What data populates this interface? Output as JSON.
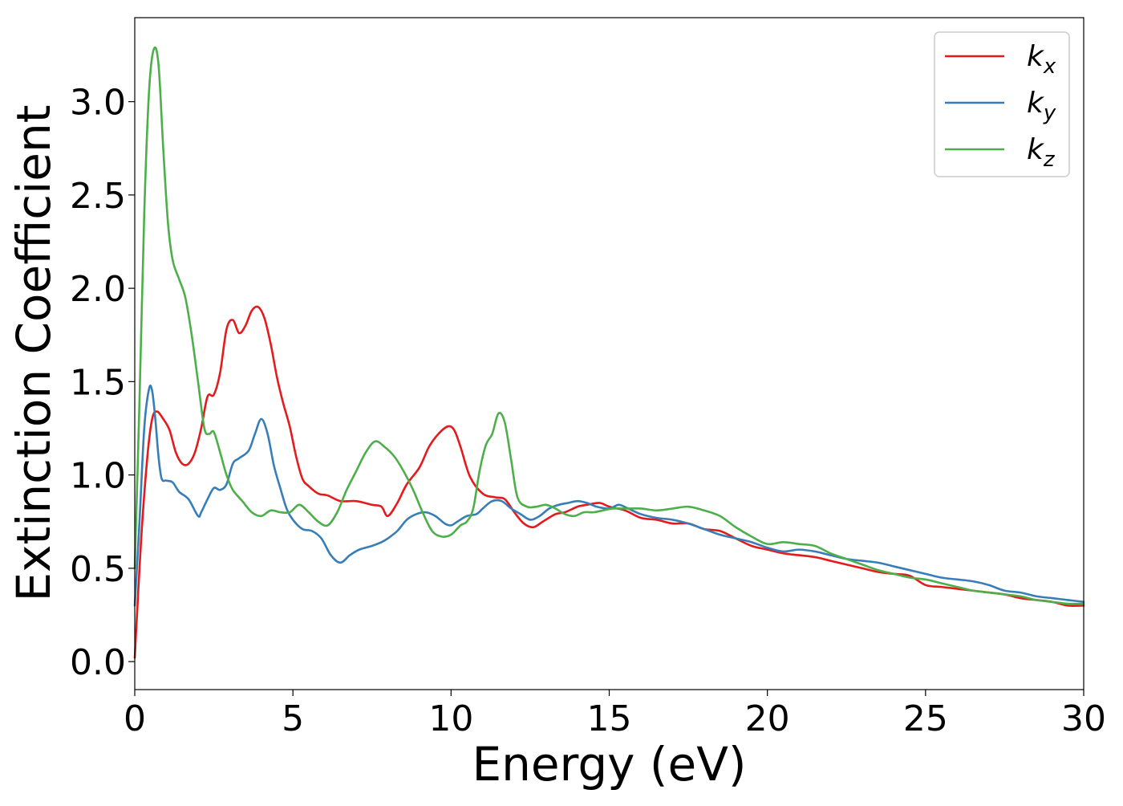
{
  "colors": {
    "kx": "#e41a1c",
    "ky": "#377eb8",
    "kz": "#4daf4a",
    "axis": "#000000",
    "background": "#ffffff"
  },
  "chart_data": {
    "type": "line",
    "title": "",
    "xlabel": "Energy (eV)",
    "ylabel": "Extinction Coefficient",
    "xlim": [
      0,
      30
    ],
    "ylim": [
      -0.15,
      3.45
    ],
    "xticks": [
      0,
      5,
      10,
      15,
      20,
      25,
      30
    ],
    "xtick_labels": [
      "0",
      "5",
      "10",
      "15",
      "20",
      "25",
      "30"
    ],
    "yticks": [
      0.0,
      0.5,
      1.0,
      1.5,
      2.0,
      2.5,
      3.0
    ],
    "ytick_labels": [
      "0.0",
      "0.5",
      "1.0",
      "1.5",
      "2.0",
      "2.5",
      "3.0"
    ],
    "grid": false,
    "legend_position": "top-right",
    "series": [
      {
        "key": "kx",
        "name": "k",
        "subscript": "x",
        "x": [
          0,
          0.2,
          0.4,
          0.55,
          0.7,
          0.9,
          1.1,
          1.3,
          1.5,
          1.7,
          1.9,
          2.1,
          2.3,
          2.5,
          2.7,
          2.9,
          3.1,
          3.3,
          3.5,
          3.7,
          3.9,
          4.1,
          4.3,
          4.5,
          4.7,
          4.9,
          5.1,
          5.3,
          5.5,
          5.8,
          6.1,
          6.5,
          7.0,
          7.5,
          7.8,
          8.0,
          8.3,
          8.6,
          9.0,
          9.3,
          9.6,
          9.9,
          10.1,
          10.3,
          10.6,
          11.0,
          11.4,
          11.7,
          12.0,
          12.3,
          12.6,
          12.9,
          13.3,
          13.6,
          14.0,
          14.3,
          14.7,
          15.0,
          15.5,
          16.0,
          16.5,
          17.0,
          17.5,
          18.0,
          18.5,
          19.0,
          19.5,
          20.0,
          20.5,
          21.0,
          21.5,
          22.0,
          22.5,
          23.0,
          23.5,
          24.0,
          24.5,
          25.0,
          25.5,
          26.0,
          26.5,
          27.0,
          27.5,
          28.0,
          28.5,
          29.0,
          29.5,
          30.0
        ],
        "y": [
          0.02,
          0.65,
          1.1,
          1.3,
          1.34,
          1.3,
          1.24,
          1.12,
          1.06,
          1.06,
          1.12,
          1.25,
          1.42,
          1.43,
          1.55,
          1.78,
          1.83,
          1.76,
          1.8,
          1.88,
          1.9,
          1.84,
          1.7,
          1.52,
          1.38,
          1.26,
          1.1,
          0.98,
          0.94,
          0.9,
          0.89,
          0.86,
          0.86,
          0.84,
          0.83,
          0.78,
          0.85,
          0.95,
          1.04,
          1.15,
          1.22,
          1.26,
          1.24,
          1.15,
          0.99,
          0.9,
          0.88,
          0.87,
          0.8,
          0.74,
          0.72,
          0.75,
          0.79,
          0.8,
          0.83,
          0.84,
          0.85,
          0.83,
          0.81,
          0.77,
          0.76,
          0.74,
          0.74,
          0.71,
          0.7,
          0.66,
          0.62,
          0.6,
          0.58,
          0.57,
          0.56,
          0.54,
          0.52,
          0.5,
          0.48,
          0.47,
          0.46,
          0.41,
          0.4,
          0.39,
          0.38,
          0.37,
          0.36,
          0.34,
          0.33,
          0.32,
          0.3,
          0.3
        ]
      },
      {
        "key": "ky",
        "name": "k",
        "subscript": "y",
        "x": [
          0,
          0.15,
          0.3,
          0.45,
          0.55,
          0.65,
          0.75,
          0.85,
          1.0,
          1.2,
          1.4,
          1.7,
          2.0,
          2.1,
          2.3,
          2.5,
          2.7,
          2.9,
          3.1,
          3.3,
          3.6,
          3.8,
          4.0,
          4.2,
          4.4,
          4.6,
          4.8,
          5.0,
          5.3,
          5.6,
          5.9,
          6.2,
          6.5,
          6.8,
          7.1,
          7.5,
          7.8,
          8.0,
          8.3,
          8.6,
          8.9,
          9.2,
          9.5,
          9.8,
          10.0,
          10.2,
          10.5,
          10.8,
          11.0,
          11.3,
          11.6,
          11.9,
          12.2,
          12.5,
          12.8,
          13.1,
          13.4,
          13.7,
          14.0,
          14.3,
          14.6,
          15.0,
          15.3,
          15.6,
          16.0,
          16.5,
          17.0,
          17.5,
          18.0,
          18.5,
          19.0,
          19.5,
          20.0,
          20.5,
          21.0,
          21.5,
          22.0,
          22.5,
          23.0,
          23.5,
          24.0,
          24.5,
          25.0,
          25.5,
          26.0,
          26.5,
          27.0,
          27.5,
          28.0,
          28.5,
          29.0,
          29.5,
          30.0
        ],
        "y": [
          0.3,
          0.75,
          1.25,
          1.46,
          1.45,
          1.3,
          1.1,
          0.98,
          0.97,
          0.96,
          0.91,
          0.87,
          0.78,
          0.8,
          0.87,
          0.93,
          0.92,
          0.95,
          1.06,
          1.09,
          1.13,
          1.22,
          1.3,
          1.22,
          1.05,
          0.93,
          0.82,
          0.76,
          0.71,
          0.7,
          0.66,
          0.57,
          0.53,
          0.57,
          0.6,
          0.62,
          0.64,
          0.66,
          0.7,
          0.76,
          0.79,
          0.8,
          0.78,
          0.74,
          0.73,
          0.75,
          0.78,
          0.79,
          0.82,
          0.86,
          0.86,
          0.82,
          0.79,
          0.76,
          0.78,
          0.82,
          0.84,
          0.85,
          0.86,
          0.85,
          0.83,
          0.82,
          0.84,
          0.82,
          0.79,
          0.77,
          0.76,
          0.74,
          0.71,
          0.68,
          0.66,
          0.64,
          0.61,
          0.59,
          0.6,
          0.59,
          0.57,
          0.55,
          0.54,
          0.53,
          0.51,
          0.49,
          0.47,
          0.45,
          0.44,
          0.43,
          0.41,
          0.38,
          0.37,
          0.35,
          0.34,
          0.33,
          0.32
        ]
      },
      {
        "key": "kz",
        "name": "k",
        "subscript": "z",
        "x": [
          0,
          0.15,
          0.3,
          0.45,
          0.6,
          0.75,
          0.9,
          1.05,
          1.2,
          1.4,
          1.6,
          1.8,
          2.0,
          2.2,
          2.35,
          2.5,
          2.7,
          2.9,
          3.1,
          3.4,
          3.7,
          4.0,
          4.3,
          4.6,
          4.9,
          5.2,
          5.5,
          5.8,
          6.1,
          6.4,
          6.7,
          7.0,
          7.3,
          7.6,
          7.9,
          8.2,
          8.5,
          8.8,
          9.1,
          9.4,
          9.7,
          10.0,
          10.3,
          10.5,
          10.7,
          10.9,
          11.1,
          11.3,
          11.5,
          11.7,
          11.9,
          12.1,
          12.4,
          12.7,
          13.0,
          13.3,
          13.6,
          13.9,
          14.2,
          14.5,
          14.8,
          15.1,
          15.5,
          16.0,
          16.5,
          17.0,
          17.5,
          18.0,
          18.5,
          19.0,
          19.5,
          20.0,
          20.5,
          21.0,
          21.5,
          22.0,
          22.5,
          23.0,
          23.5,
          24.0,
          24.5,
          25.0,
          25.5,
          26.0,
          26.5,
          27.0,
          27.5,
          28.0,
          28.5,
          29.0,
          29.5,
          30.0
        ],
        "y": [
          0.5,
          1.4,
          2.4,
          3.05,
          3.28,
          3.2,
          2.75,
          2.35,
          2.15,
          2.05,
          1.95,
          1.75,
          1.5,
          1.25,
          1.22,
          1.23,
          1.12,
          1.0,
          0.92,
          0.86,
          0.8,
          0.78,
          0.81,
          0.8,
          0.8,
          0.84,
          0.8,
          0.75,
          0.73,
          0.8,
          0.92,
          1.02,
          1.12,
          1.18,
          1.15,
          1.1,
          1.02,
          0.92,
          0.8,
          0.7,
          0.67,
          0.68,
          0.73,
          0.75,
          0.82,
          1.02,
          1.16,
          1.22,
          1.33,
          1.28,
          1.08,
          0.88,
          0.83,
          0.83,
          0.84,
          0.82,
          0.79,
          0.78,
          0.8,
          0.8,
          0.81,
          0.82,
          0.82,
          0.82,
          0.81,
          0.82,
          0.83,
          0.81,
          0.78,
          0.72,
          0.67,
          0.63,
          0.64,
          0.63,
          0.62,
          0.58,
          0.55,
          0.52,
          0.49,
          0.47,
          0.45,
          0.44,
          0.42,
          0.4,
          0.38,
          0.37,
          0.36,
          0.35,
          0.33,
          0.32,
          0.31,
          0.31
        ]
      }
    ]
  }
}
